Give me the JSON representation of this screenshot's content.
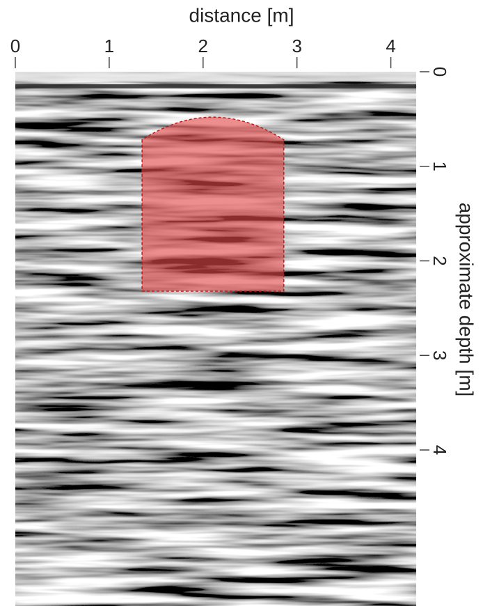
{
  "chart_data": {
    "type": "radargram",
    "title": "distance [m]",
    "y_label": "approximate depth [m]",
    "xlim": [
      0,
      4.27
    ],
    "xticks": [
      0,
      1,
      2,
      3,
      4
    ],
    "ylim": [
      0,
      5.65
    ],
    "yticks": [
      0,
      1,
      2,
      3,
      4
    ],
    "highlight": {
      "x": [
        1.35,
        2.86
      ],
      "depth": [
        0.72,
        2.32
      ],
      "apex": 0.48,
      "color": "#e04848"
    }
  }
}
